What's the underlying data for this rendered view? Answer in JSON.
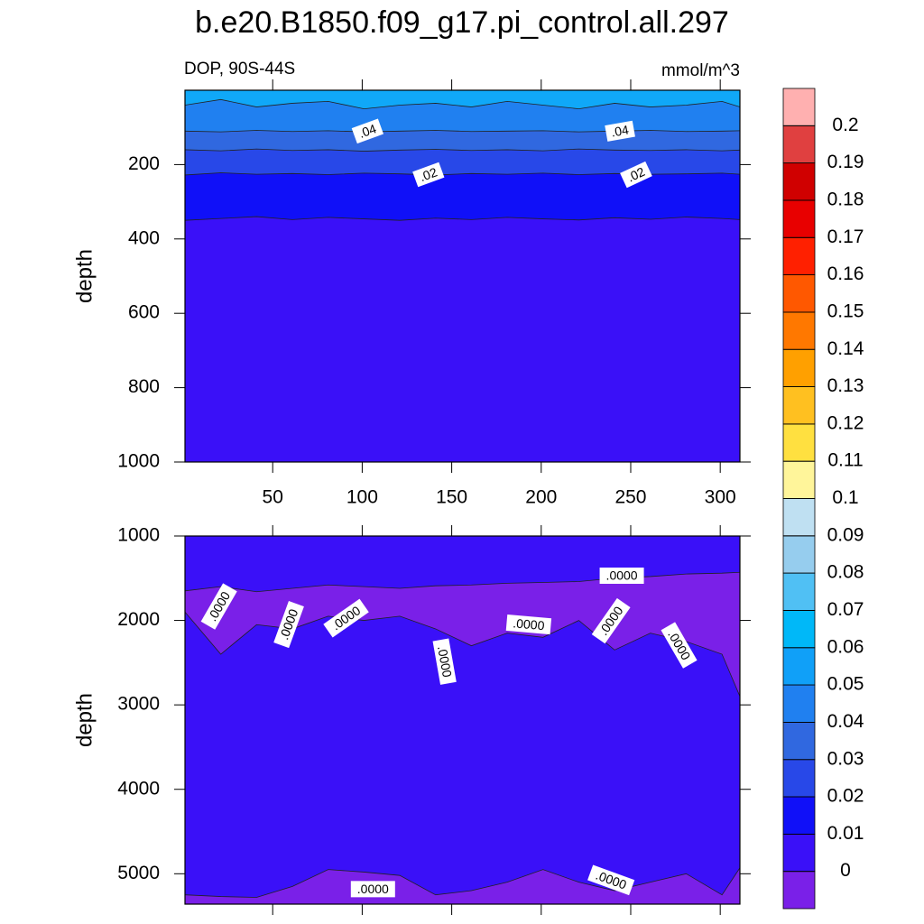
{
  "chart_data": [
    {
      "type": "contour",
      "title": "b.e20.B1850.f09_g17.pi_control.all.297",
      "subtitle_left": "DOP, 90S-44S",
      "subtitle_right": "mmol/m^3",
      "ylabel": "depth",
      "xlim": [
        1,
        311
      ],
      "xticks": [
        50,
        100,
        150,
        200,
        250,
        300
      ],
      "ylim": [
        0,
        1000
      ],
      "yticks": [
        200,
        400,
        600,
        800,
        1000
      ],
      "y_reversed": true,
      "xtick_labels": true,
      "color_top": "#10a8f8",
      "x": [
        1,
        21,
        41,
        61,
        81,
        101,
        121,
        141,
        161,
        181,
        201,
        221,
        241,
        261,
        281,
        301,
        311
      ],
      "boundaries": [
        {
          "level": 0.05,
          "color_below": "#2080f0",
          "depth": [
            40,
            25,
            45,
            35,
            30,
            50,
            40,
            35,
            45,
            30,
            40,
            50,
            35,
            45,
            40,
            30,
            45
          ]
        },
        {
          "level": 0.04,
          "color_below": "#3068e0",
          "depth": [
            110,
            112,
            108,
            111,
            109,
            112,
            110,
            108,
            111,
            110,
            109,
            112,
            110,
            108,
            111,
            110,
            109
          ]
        },
        {
          "level": 0.03,
          "color_below": "#2848e8",
          "depth": [
            160,
            163,
            158,
            162,
            160,
            164,
            161,
            159,
            162,
            160,
            163,
            158,
            161,
            162,
            160,
            163,
            161
          ]
        },
        {
          "level": 0.02,
          "color_below": "#1010f8",
          "depth": [
            228,
            222,
            226,
            224,
            227,
            223,
            225,
            228,
            224,
            226,
            223,
            227,
            224,
            226,
            225,
            223,
            226
          ]
        },
        {
          "level": 0.01,
          "color_below": "#3a10f8",
          "depth": [
            350,
            345,
            340,
            348,
            342,
            346,
            350,
            344,
            348,
            342,
            346,
            349,
            343,
            347,
            341,
            345,
            348
          ]
        }
      ],
      "contour_labels": [
        {
          "text": ".04",
          "x": 103,
          "depth": 110
        },
        {
          "text": ".04",
          "x": 244,
          "depth": 110
        },
        {
          "text": ".02",
          "x": 137,
          "depth": 227
        },
        {
          "text": ".02",
          "x": 253,
          "depth": 227
        }
      ]
    },
    {
      "type": "contour",
      "ylabel": "depth",
      "xlim": [
        1,
        311
      ],
      "xticks": [
        50,
        100,
        150,
        200,
        250,
        300
      ],
      "ylim": [
        1000,
        5360
      ],
      "yticks": [
        1000,
        2000,
        3000,
        4000,
        5000
      ],
      "y_reversed": true,
      "xtick_labels": false,
      "color_top": "#3a10f8",
      "x": [
        1,
        21,
        41,
        61,
        81,
        101,
        121,
        141,
        161,
        181,
        201,
        221,
        241,
        261,
        281,
        301,
        311
      ],
      "boundaries": [
        {
          "level": 0,
          "color_below": "#7a20e8",
          "depth": [
            1650,
            1600,
            1660,
            1620,
            1580,
            1600,
            1620,
            1590,
            1580,
            1560,
            1550,
            1540,
            1500,
            1480,
            1450,
            1440,
            1430
          ]
        },
        {
          "level": 0,
          "color_below": "#3a10f8",
          "depth": [
            1900,
            2400,
            2050,
            2100,
            1950,
            2000,
            1950,
            2100,
            2300,
            2150,
            2200,
            2000,
            2350,
            2150,
            2250,
            2400,
            2900
          ]
        },
        {
          "level": 0,
          "color_below": "#7a20e8",
          "depth": [
            5250,
            5270,
            5280,
            5150,
            4950,
            4980,
            5020,
            5250,
            5200,
            5100,
            4950,
            5100,
            5200,
            5100,
            5000,
            5250,
            4930
          ]
        }
      ],
      "contour_labels": [
        {
          "text": ".0000",
          "x": 20,
          "depth": 1834
        },
        {
          "text": ".0000",
          "x": 59,
          "depth": 2048
        },
        {
          "text": ".0000",
          "x": 91,
          "depth": 1973
        },
        {
          "text": ".0000",
          "x": 146,
          "depth": 2487
        },
        {
          "text": ".0000",
          "x": 193,
          "depth": 2048
        },
        {
          "text": ".0000",
          "x": 245,
          "depth": 1470
        },
        {
          "text": ".0000",
          "x": 239,
          "depth": 2005
        },
        {
          "text": ".0000",
          "x": 277,
          "depth": 2294
        },
        {
          "text": ".0000",
          "x": 106,
          "depth": 5182
        },
        {
          "text": ".0000",
          "x": 239,
          "depth": 5075
        }
      ]
    },
    {
      "type": "colorbar",
      "colors": [
        "#7a20e8",
        "#3a10f8",
        "#1010f8",
        "#2848e8",
        "#3068e0",
        "#2080f0",
        "#10a0f8",
        "#00b8f8",
        "#50c0f4",
        "#96cdee",
        "#bfe0f2",
        "#fff59a",
        "#ffe040",
        "#ffc020",
        "#ffa000",
        "#ff7800",
        "#ff5800",
        "#ff2000",
        "#e80000",
        "#d00000",
        "#e04040",
        "#ffb0b0"
      ],
      "ticks": [
        0,
        0.01,
        0.02,
        0.03,
        0.04,
        0.05,
        0.06,
        0.07,
        0.08,
        0.09,
        0.1,
        0.11,
        0.12,
        0.13,
        0.14,
        0.15,
        0.16,
        0.17,
        0.18,
        0.19,
        0.2
      ]
    }
  ]
}
